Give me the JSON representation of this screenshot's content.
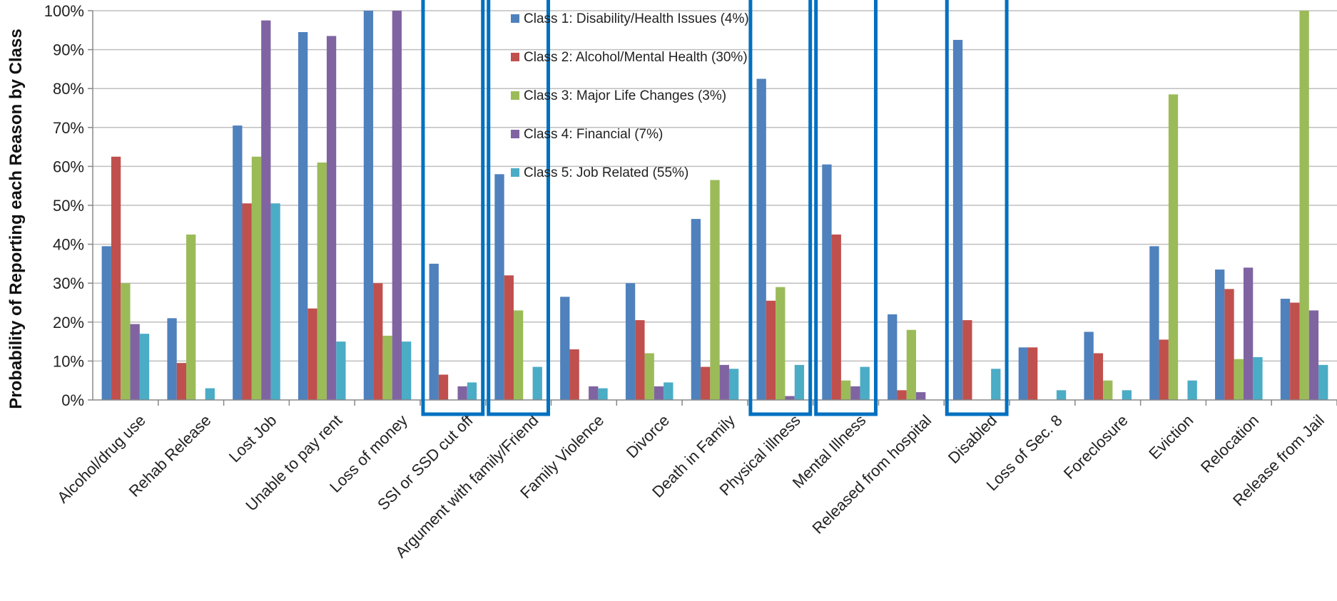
{
  "chart_data": {
    "type": "bar",
    "ylabel": "Probability of Reporting each Reason by Class",
    "xlabel": "",
    "ylim": [
      0,
      100
    ],
    "ytick_step": 10,
    "ytick_format": "percent",
    "grid": true,
    "legend_position": "top-center",
    "categories": [
      "Alcohol/drug use",
      "Rehab Release",
      "Lost Job",
      "Unable to pay rent",
      "Loss of money",
      "SSI or SSD cut off",
      "Argument with family/Friend",
      "Family Violence",
      "Divorce",
      "Death in Family",
      "Physical illness",
      "Mental Illness",
      "Released from hospital",
      "Disabled",
      "Loss of Sec. 8",
      "Foreclosure",
      "Eviction",
      "Relocation",
      "Release from Jail"
    ],
    "series": [
      {
        "name": "Class 1: Disability/Health Issues (4%)",
        "color": "#4F81BD",
        "values": [
          39.5,
          21,
          70.5,
          94.5,
          100,
          35,
          58,
          26.5,
          30,
          46.5,
          82.5,
          60.5,
          22,
          92.5,
          13.5,
          17.5,
          39.5,
          33.5,
          26
        ]
      },
      {
        "name": "Class 2: Alcohol/Mental Health (30%)",
        "color": "#C0504D",
        "values": [
          62.5,
          9.5,
          50.5,
          23.5,
          30,
          6.5,
          32,
          13,
          20.5,
          8.5,
          25.5,
          42.5,
          2.5,
          20.5,
          13.5,
          12,
          15.5,
          28.5,
          25
        ]
      },
      {
        "name": "Class 3: Major Life Changes (3%)",
        "color": "#9BBB59",
        "values": [
          30,
          42.5,
          62.5,
          61,
          16.5,
          0,
          23,
          0,
          12,
          56.5,
          29,
          5,
          18,
          0,
          0,
          5,
          78.5,
          10.5,
          100
        ]
      },
      {
        "name": "Class 4: Financial (7%)",
        "color": "#8064A2",
        "values": [
          19.5,
          0,
          97.5,
          93.5,
          100,
          3.5,
          0,
          3.5,
          3.5,
          9,
          1,
          3.5,
          2,
          0,
          0,
          0,
          0,
          34,
          23
        ]
      },
      {
        "name": "Class 5: Job Related (55%)",
        "color": "#4BACC6",
        "values": [
          17,
          3,
          50.5,
          15,
          15,
          4.5,
          8.5,
          3,
          4.5,
          8,
          9,
          8.5,
          0,
          8,
          2.5,
          2.5,
          5,
          11,
          9
        ]
      }
    ],
    "highlight_boxes": [
      [
        5,
        6
      ],
      [
        10,
        11
      ],
      [
        13,
        13
      ]
    ],
    "highlight_color": "#0070C0"
  }
}
